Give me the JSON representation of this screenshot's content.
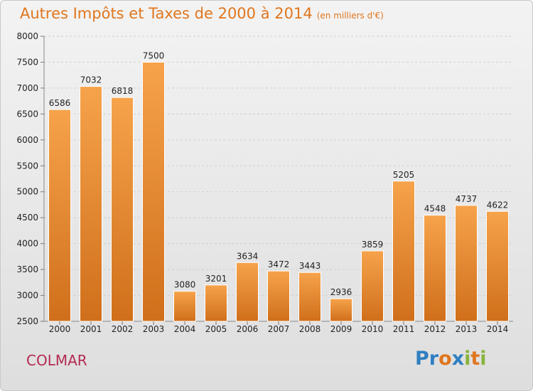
{
  "header": {
    "title": "Autres Impôts et Taxes de 2000 à 2014",
    "unit": "(en milliers d'€)"
  },
  "footer": {
    "city": "COLMAR",
    "brand_letters": [
      {
        "char": "P",
        "color": "#2f7fc1"
      },
      {
        "char": "r",
        "color": "#2f7fc1"
      },
      {
        "char": "o",
        "color": "#e0761e"
      },
      {
        "char": "x",
        "color": "#2f7fc1"
      },
      {
        "char": "i",
        "color": "#8ab43d"
      },
      {
        "char": "t",
        "color": "#e0761e"
      },
      {
        "char": "i",
        "color": "#8ab43d"
      }
    ]
  },
  "colors": {
    "bar_top": "#f6a34b",
    "bar_bottom": "#d06f1b",
    "title": "#e0761e",
    "city": "#b42a52",
    "grid": "#cfcfcf"
  },
  "chart_data": {
    "type": "bar",
    "categories": [
      "2000",
      "2001",
      "2002",
      "2003",
      "2004",
      "2005",
      "2006",
      "2007",
      "2008",
      "2009",
      "2010",
      "2011",
      "2012",
      "2013",
      "2014"
    ],
    "values": [
      6586,
      7032,
      6818,
      7500,
      3080,
      3201,
      3634,
      3472,
      3443,
      2936,
      3859,
      5205,
      4548,
      4737,
      4622
    ],
    "yticks": [
      2500,
      3000,
      3500,
      4000,
      4500,
      5000,
      5500,
      6000,
      6500,
      7000,
      7500,
      8000
    ],
    "ylim": [
      2500,
      8000
    ],
    "grid": "horizontal dashed",
    "data_labels": true
  }
}
